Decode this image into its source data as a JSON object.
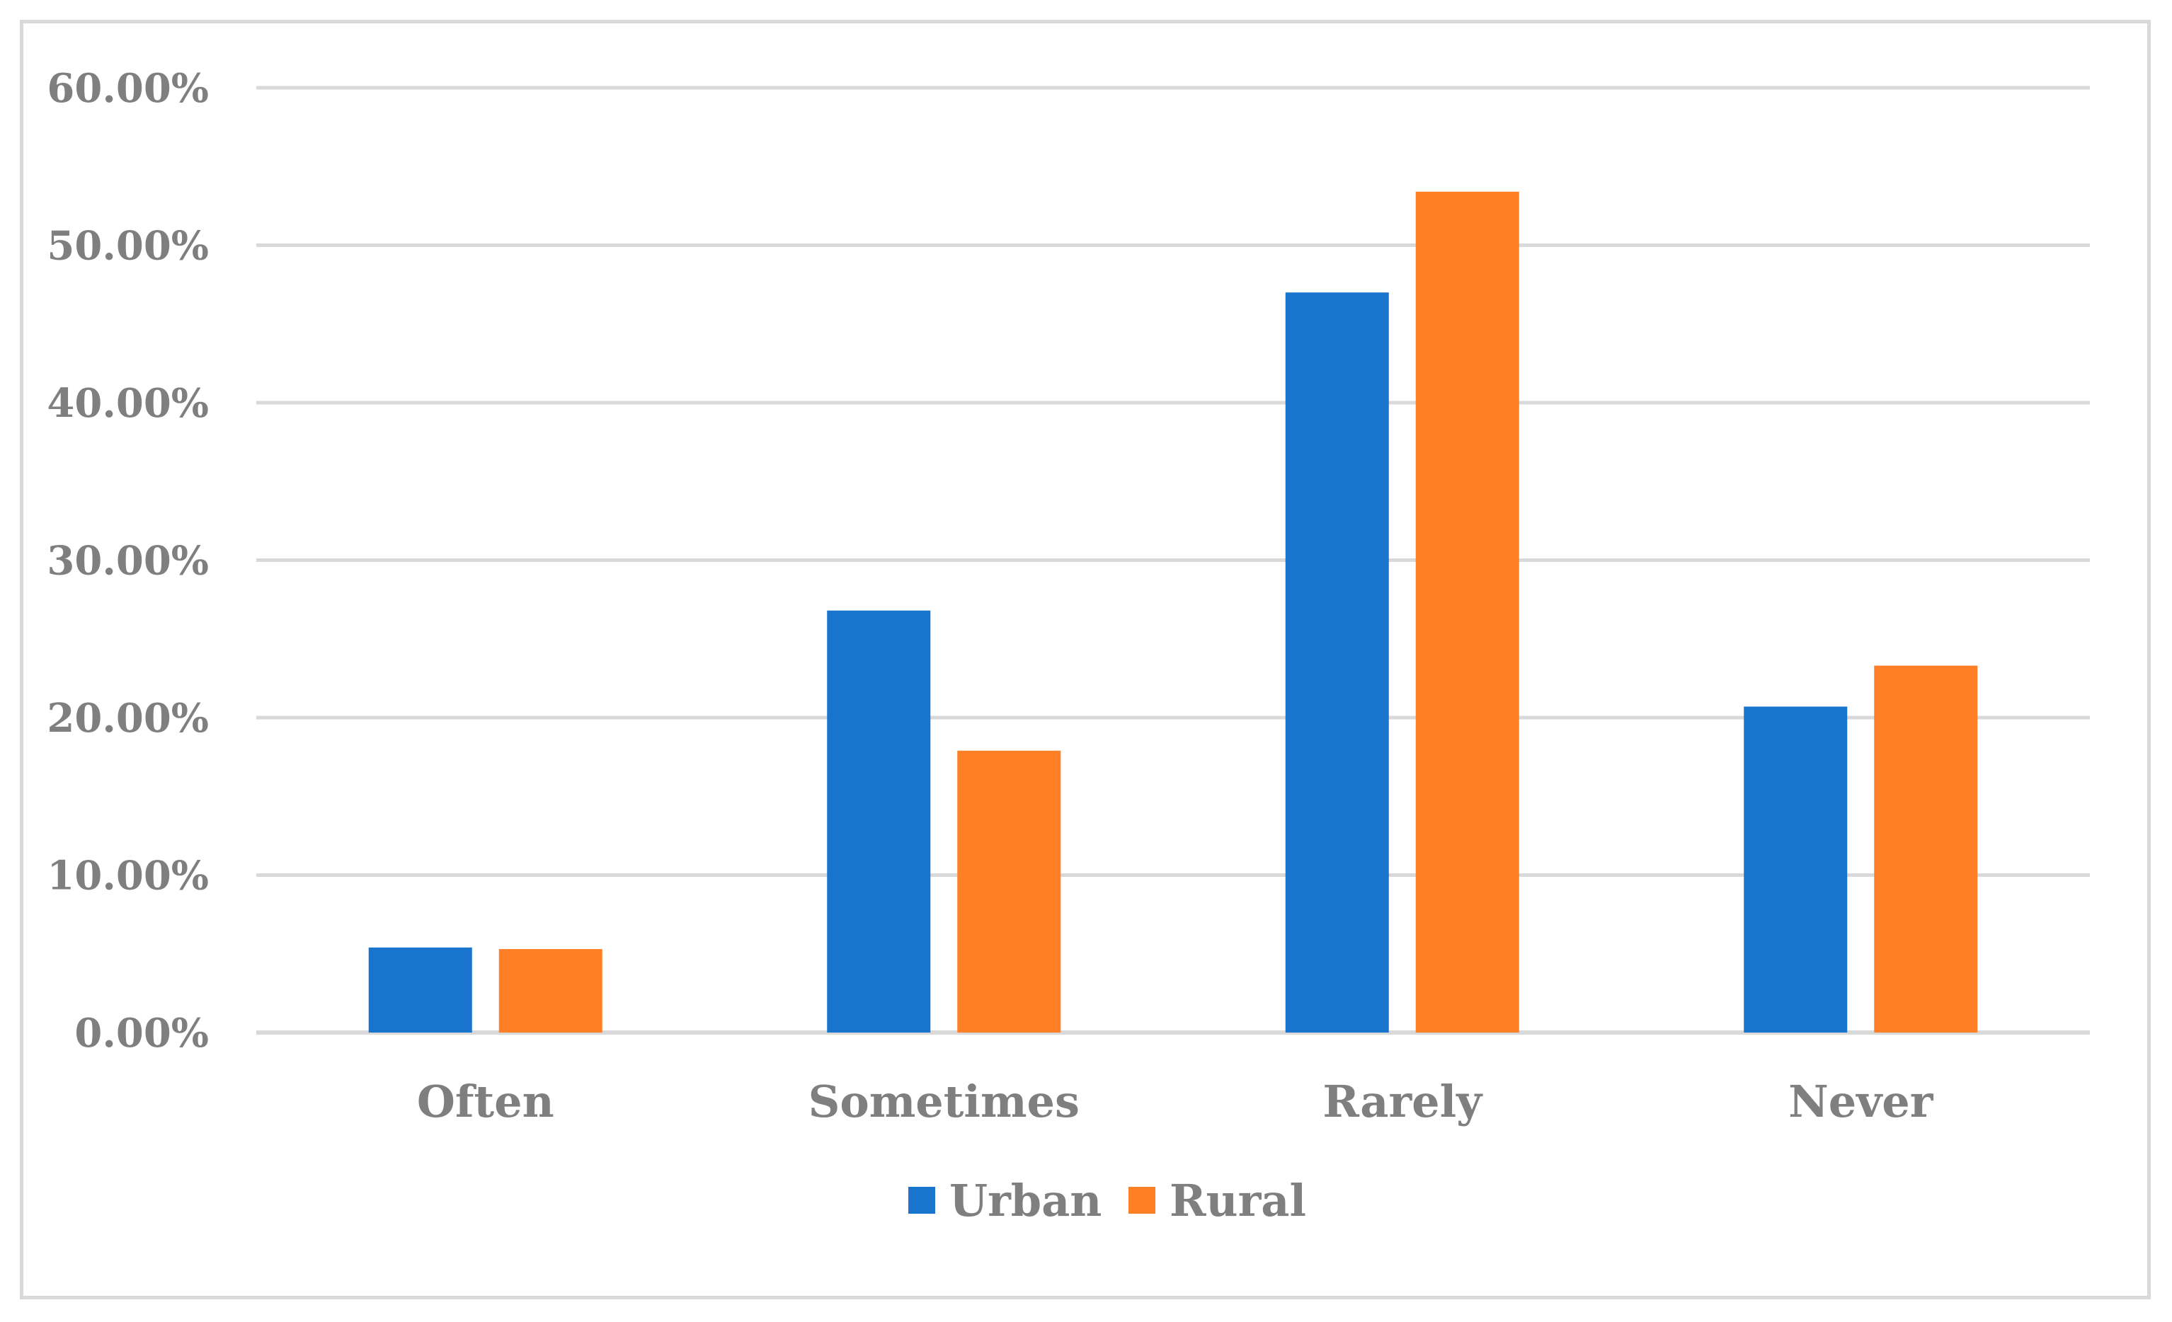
{
  "chart_data": {
    "type": "bar",
    "categories": [
      "Often",
      "Sometimes",
      "Rarely",
      "Never"
    ],
    "series": [
      {
        "name": "Urban",
        "values": [
          0.054,
          0.268,
          0.47,
          0.207
        ],
        "color": "#1874cd"
      },
      {
        "name": "Rural",
        "values": [
          0.053,
          0.179,
          0.534,
          0.233
        ],
        "color": "#fe7f26"
      }
    ],
    "yticks": [
      0,
      0.1,
      0.2,
      0.3,
      0.4,
      0.5,
      0.6
    ],
    "ytick_labels": [
      "0.00%",
      "10.00%",
      "20.00%",
      "30.00%",
      "40.00%",
      "50.00%",
      "60.00%"
    ],
    "ylim": [
      0,
      0.6
    ],
    "grid": true,
    "legend_position": "bottom-center",
    "title": "",
    "xlabel": "",
    "ylabel": ""
  }
}
